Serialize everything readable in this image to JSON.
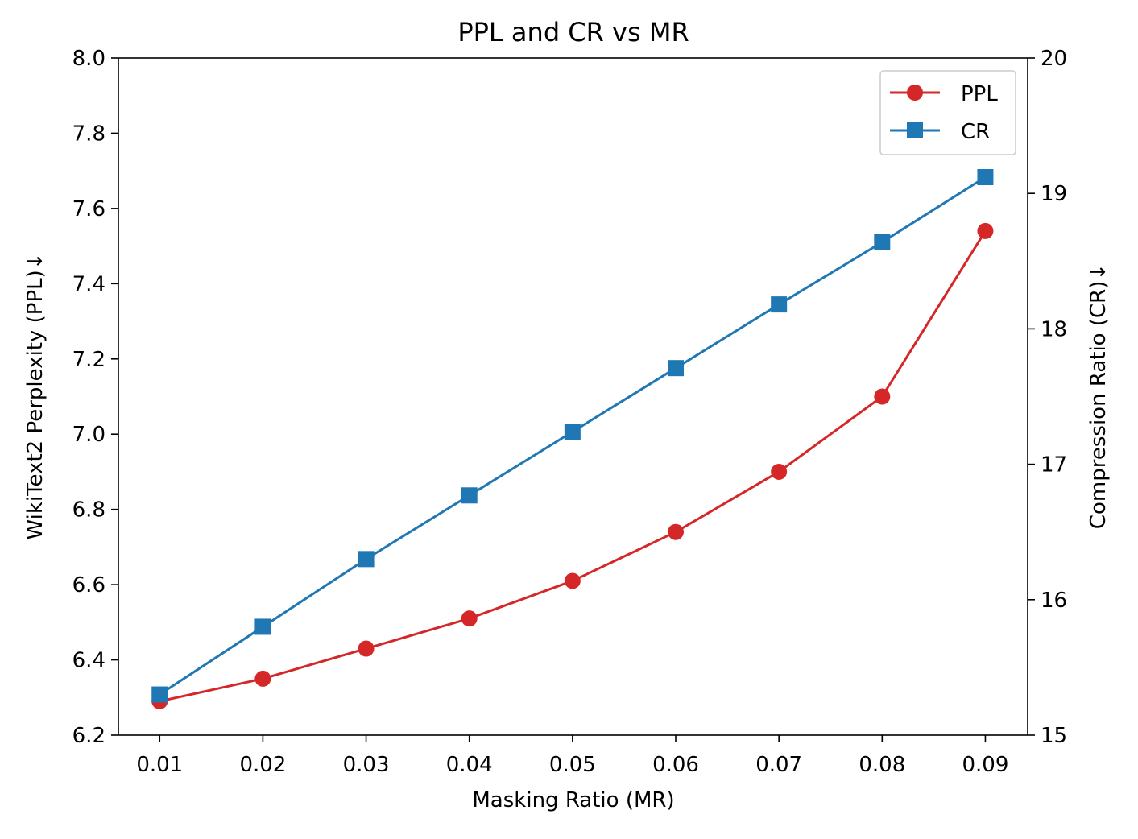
{
  "chart_data": {
    "type": "line",
    "title": "PPL and CR vs MR",
    "xlabel": "Masking Ratio (MR)",
    "ylabel_left": "WikiText2 Perplexity (PPL)↓",
    "ylabel_right": "Compression Ratio (CR)↓",
    "x": [
      0.01,
      0.02,
      0.03,
      0.04,
      0.05,
      0.06,
      0.07,
      0.08,
      0.09
    ],
    "x_tick_labels": [
      "0.01",
      "0.02",
      "0.03",
      "0.04",
      "0.05",
      "0.06",
      "0.07",
      "0.08",
      "0.09"
    ],
    "xlim": [
      0.006,
      0.0941
    ],
    "ylim_left": [
      6.2,
      8.0
    ],
    "ylim_right": [
      15,
      20
    ],
    "yticks_left": [
      "6.2",
      "6.4",
      "6.6",
      "6.8",
      "7.0",
      "7.2",
      "7.4",
      "7.6",
      "7.8",
      "8.0"
    ],
    "yticks_right": [
      "15",
      "16",
      "17",
      "18",
      "19",
      "20"
    ],
    "legend_position": "top-right",
    "grid": false,
    "series": [
      {
        "name": "PPL",
        "axis": "left",
        "color": "#d62728",
        "marker": "circle",
        "values": [
          6.29,
          6.35,
          6.43,
          6.51,
          6.61,
          6.74,
          6.9,
          7.1,
          7.54
        ]
      },
      {
        "name": "CR",
        "axis": "right",
        "color": "#1f77b4",
        "marker": "square",
        "values": [
          15.3,
          15.8,
          16.3,
          16.77,
          17.24,
          17.71,
          18.18,
          18.64,
          19.12
        ]
      }
    ]
  }
}
